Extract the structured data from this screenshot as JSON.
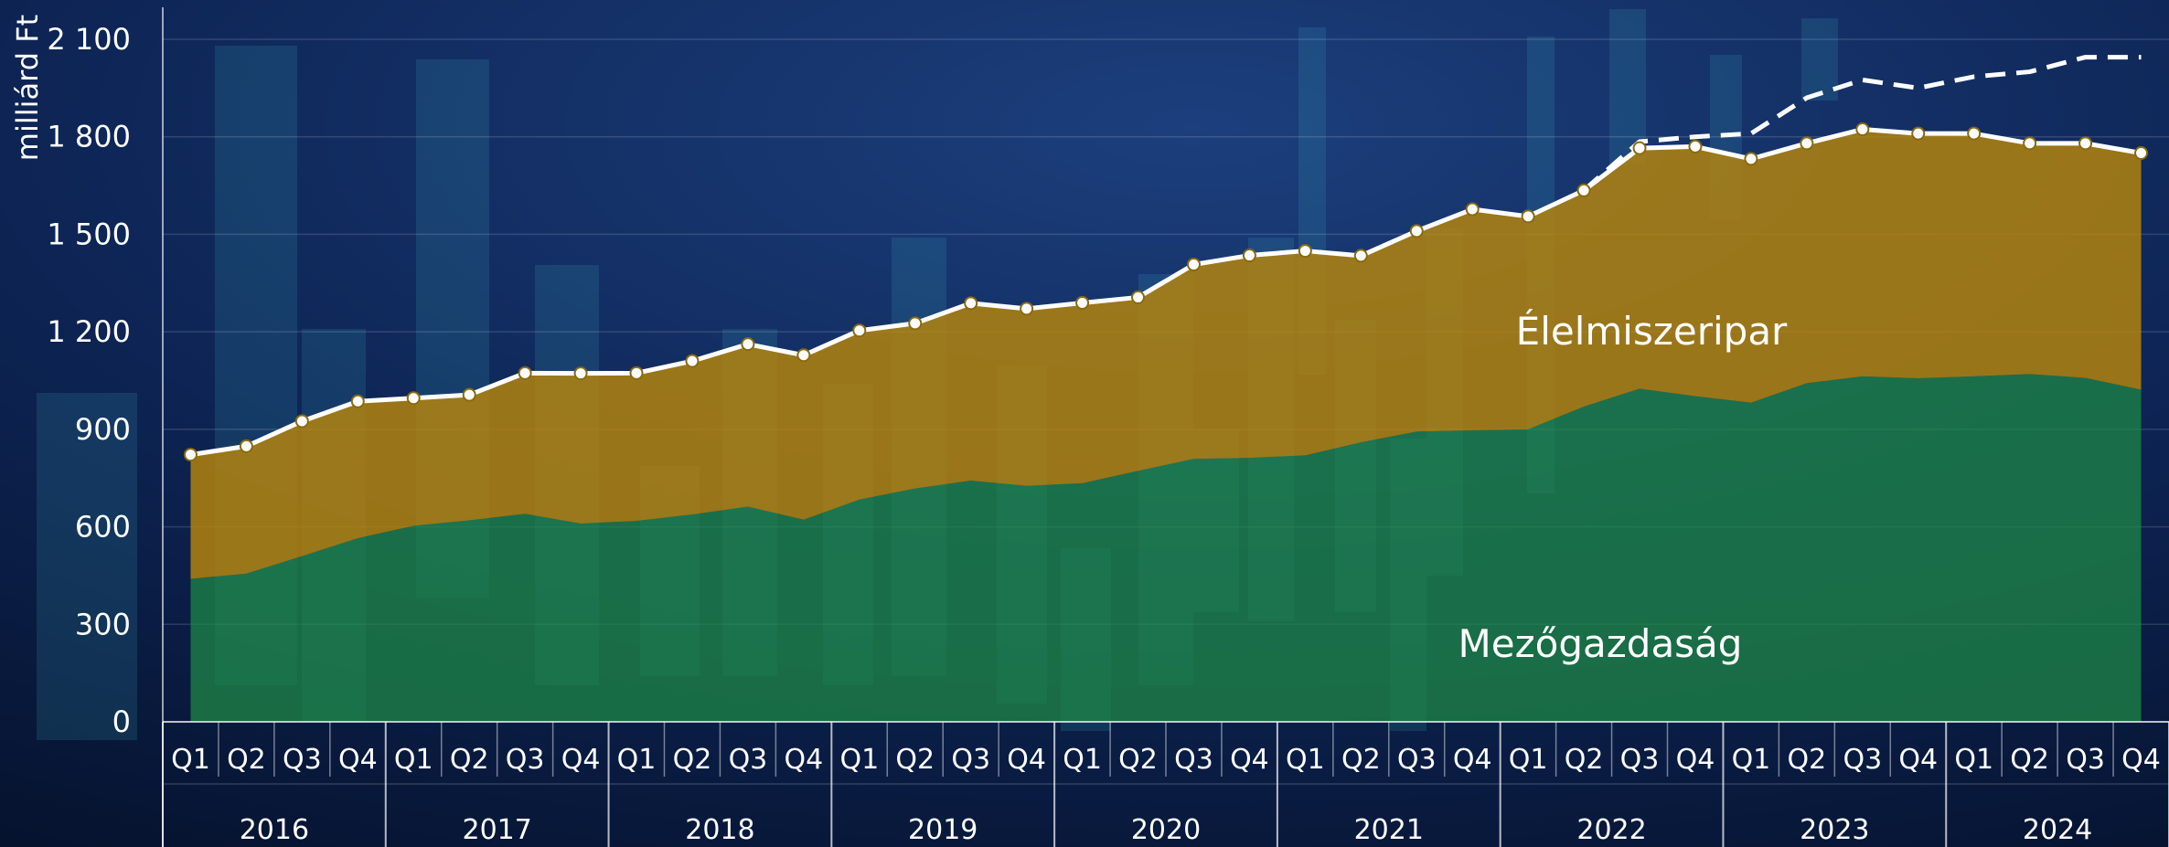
{
  "chart_data": {
    "type": "area",
    "ylabel": "milliárd Ft",
    "ylim": [
      0,
      2100
    ],
    "yticks": [
      0,
      300,
      600,
      900,
      1200,
      1500,
      1800,
      2100
    ],
    "ytick_labels": [
      "0",
      "300",
      "600",
      "900",
      "1 200",
      "1 500",
      "1 800",
      "2 100"
    ],
    "quarters": [
      "Q1",
      "Q2",
      "Q3",
      "Q4",
      "Q1",
      "Q2",
      "Q3",
      "Q4",
      "Q1",
      "Q2",
      "Q3",
      "Q4",
      "Q1",
      "Q2",
      "Q3",
      "Q4",
      "Q1",
      "Q2",
      "Q3",
      "Q4",
      "Q1",
      "Q2",
      "Q3",
      "Q4",
      "Q1",
      "Q2",
      "Q3",
      "Q4",
      "Q1",
      "Q2",
      "Q3",
      "Q4",
      "Q1",
      "Q2",
      "Q3",
      "Q4"
    ],
    "years": [
      "2016",
      "2017",
      "2018",
      "2019",
      "2020",
      "2021",
      "2022",
      "2023",
      "2024"
    ],
    "grid": true,
    "series": [
      {
        "name": "Mezőgazdaság",
        "color": "#1e8a45",
        "values": [
          440,
          456,
          510,
          565,
          603,
          620,
          640,
          610,
          618,
          638,
          662,
          622,
          684,
          718,
          742,
          726,
          734,
          772,
          809,
          812,
          820,
          860,
          893,
          897,
          900,
          970,
          1025,
          1002,
          982,
          1042,
          1063,
          1057,
          1063,
          1070,
          1058,
          1022
        ]
      },
      {
        "name": "Élelmiszeripar",
        "color": "#b8860b",
        "values": [
          382,
          392,
          415,
          421,
          393,
          386,
          433,
          462,
          455,
          472,
          500,
          506,
          520,
          508,
          546,
          545,
          555,
          534,
          598,
          623,
          629,
          574,
          617,
          680,
          655,
          665,
          740,
          768,
          750,
          738,
          760,
          753,
          747,
          710,
          722,
          728
        ]
      }
    ],
    "total": [
      822,
      848,
      925,
      986,
      996,
      1006,
      1073,
      1072,
      1073,
      1110,
      1162,
      1128,
      1204,
      1226,
      1288,
      1271,
      1289,
      1306,
      1407,
      1435,
      1449,
      1434,
      1510,
      1577,
      1555,
      1635,
      1765,
      1770,
      1732,
      1780,
      1823,
      1810,
      1810,
      1780,
      1780,
      1750
    ],
    "dashed_total": {
      "start_index": 25,
      "values": [
        1635,
        1785,
        1800,
        1810,
        1920,
        1975,
        1950,
        1985,
        2000,
        2045,
        2045
      ]
    },
    "annotations": [
      "Élelmiszeripar",
      "Mezőgazdaság"
    ]
  }
}
